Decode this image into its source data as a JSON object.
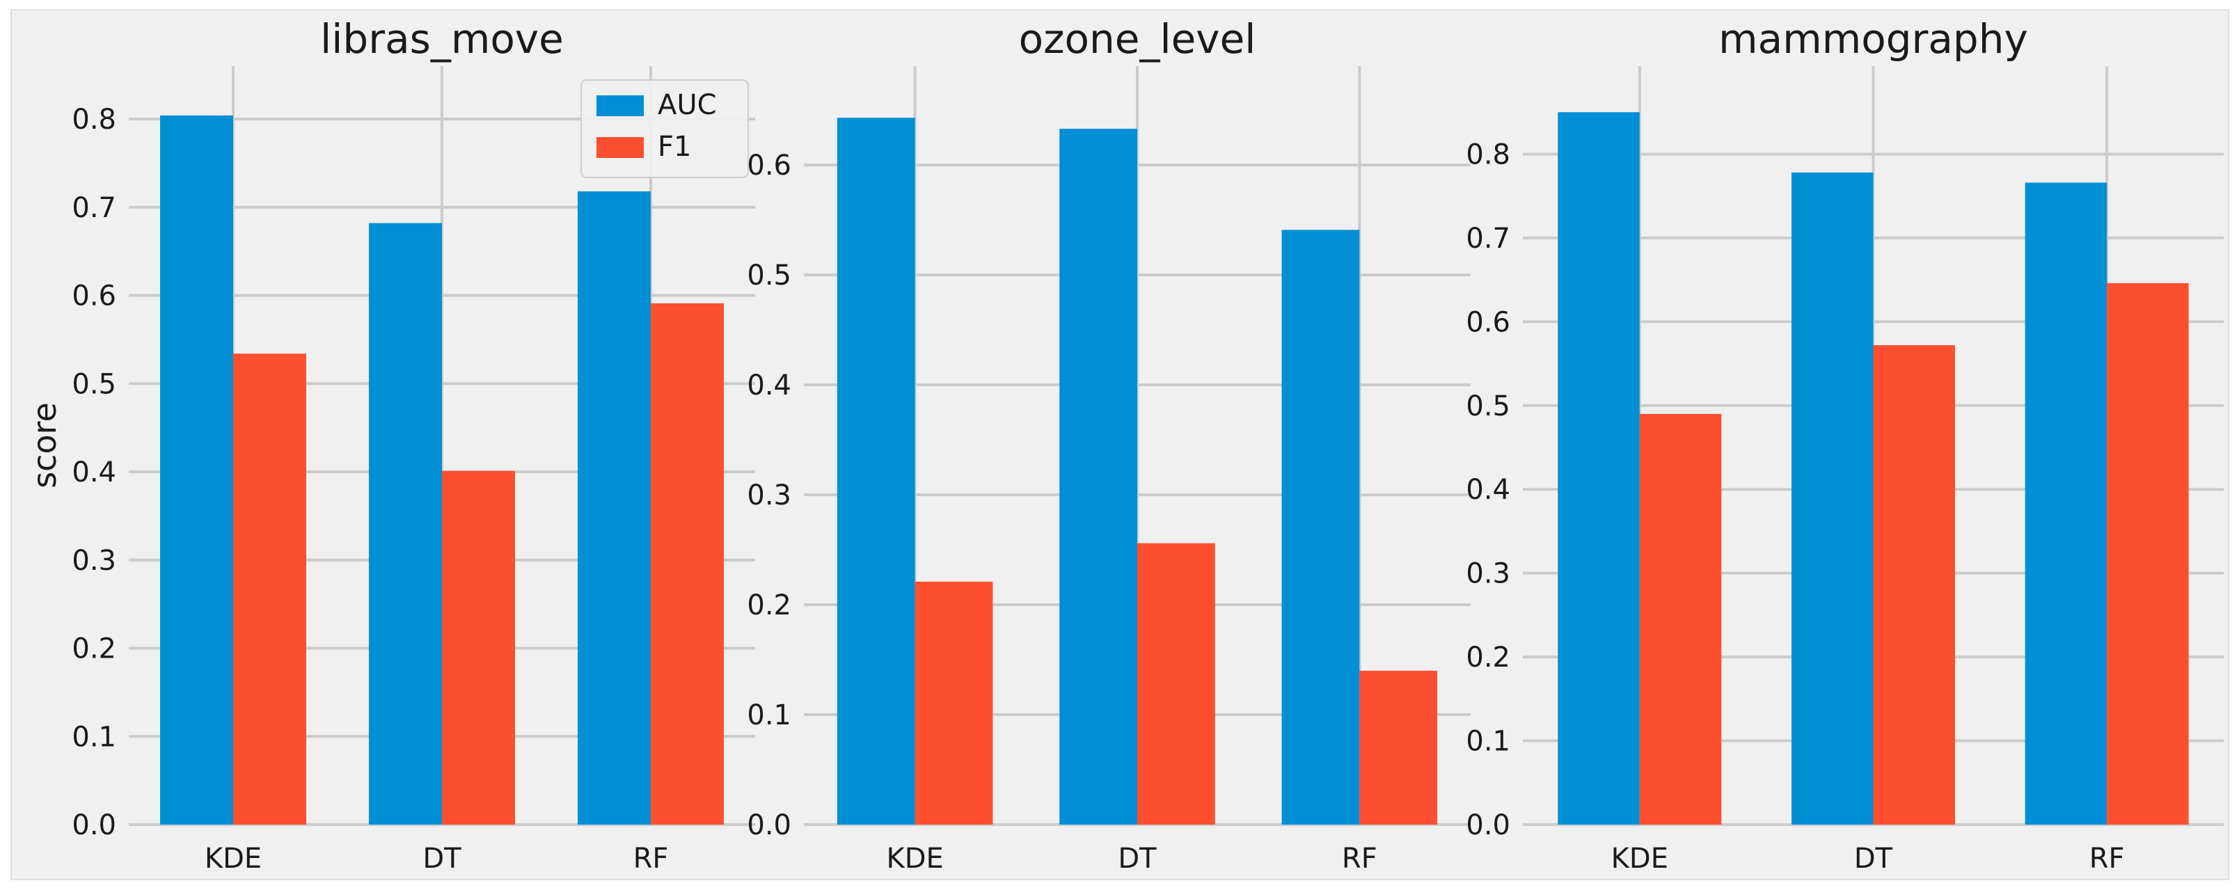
{
  "chart_data": [
    {
      "type": "bar",
      "title": "libras_move",
      "xlabel": "",
      "ylabel": "score",
      "categories": [
        "KDE",
        "DT",
        "RF"
      ],
      "series": [
        {
          "name": "AUC",
          "values": [
            0.804,
            0.682,
            0.718
          ]
        },
        {
          "name": "F1",
          "values": [
            0.534,
            0.401,
            0.591
          ]
        }
      ],
      "ylim": [
        0,
        0.86
      ],
      "yticks": [
        0.0,
        0.1,
        0.2,
        0.3,
        0.4,
        0.5,
        0.6,
        0.7,
        0.8
      ],
      "ytick_labels": [
        "0.0",
        "0.1",
        "0.2",
        "0.3",
        "0.4",
        "0.5",
        "0.6",
        "0.7",
        "0.8"
      ],
      "legend": {
        "position": "top-right",
        "entries": [
          "AUC",
          "F1"
        ]
      },
      "grid": true
    },
    {
      "type": "bar",
      "title": "ozone_level",
      "xlabel": "",
      "ylabel": "",
      "categories": [
        "KDE",
        "DT",
        "RF"
      ],
      "series": [
        {
          "name": "AUC",
          "values": [
            0.643,
            0.633,
            0.541
          ]
        },
        {
          "name": "F1",
          "values": [
            0.221,
            0.256,
            0.14
          ]
        }
      ],
      "ylim": [
        0,
        0.69
      ],
      "yticks": [
        0.0,
        0.1,
        0.2,
        0.3,
        0.4,
        0.5,
        0.6
      ],
      "ytick_labels": [
        "0.0",
        "0.1",
        "0.2",
        "0.3",
        "0.4",
        "0.5",
        "0.6"
      ],
      "grid": true
    },
    {
      "type": "bar",
      "title": "mammography",
      "xlabel": "",
      "ylabel": "",
      "categories": [
        "KDE",
        "DT",
        "RF"
      ],
      "series": [
        {
          "name": "AUC",
          "values": [
            0.85,
            0.778,
            0.766
          ]
        },
        {
          "name": "F1",
          "values": [
            0.49,
            0.572,
            0.646
          ]
        }
      ],
      "ylim": [
        0,
        0.905
      ],
      "yticks": [
        0.0,
        0.1,
        0.2,
        0.3,
        0.4,
        0.5,
        0.6,
        0.7,
        0.8
      ],
      "ytick_labels": [
        "0.0",
        "0.1",
        "0.2",
        "0.3",
        "0.4",
        "0.5",
        "0.6",
        "0.7",
        "0.8"
      ],
      "grid": true
    }
  ],
  "colors": {
    "AUC": "#008fd5",
    "F1": "#fc4f30"
  }
}
